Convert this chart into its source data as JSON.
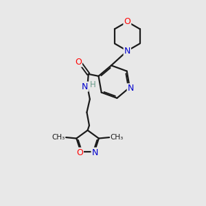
{
  "bg_color": "#e8e8e8",
  "bond_color": "#1a1a1a",
  "atom_colors": {
    "N": "#0000cd",
    "O": "#ff0000",
    "H": "#6a9a8a",
    "C": "#1a1a1a"
  },
  "figsize": [
    3.0,
    3.0
  ],
  "dpi": 100
}
